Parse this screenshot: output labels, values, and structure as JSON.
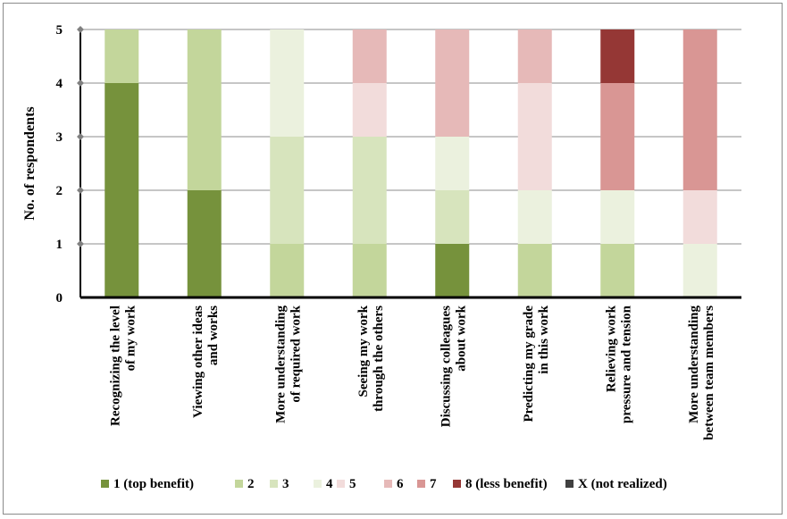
{
  "chart_data": {
    "type": "bar",
    "stacked": true,
    "ylabel": "No. of respondents",
    "ylim": [
      0,
      5
    ],
    "yticks": [
      "0",
      "1",
      "2",
      "3",
      "4",
      "5"
    ],
    "grid": true,
    "legend_position": "bottom",
    "categories": [
      [
        "Recognizing the level",
        "of my work"
      ],
      [
        "Viewing other ideas",
        "and works"
      ],
      [
        "More understanding",
        "of required work"
      ],
      [
        "Seeing my work",
        "through the others"
      ],
      [
        "Discussing colleagues",
        "about work"
      ],
      [
        "Predicting my grade",
        "in this work"
      ],
      [
        "Relieving work",
        "pressure and tension"
      ],
      [
        "More understanding",
        "between team members"
      ]
    ],
    "series": [
      {
        "name": "1 (top benefit)",
        "color": "#76923c",
        "values": [
          4,
          2,
          0,
          0,
          1,
          0,
          0,
          0
        ]
      },
      {
        "name": "2",
        "color": "#c3d69b",
        "values": [
          1,
          3,
          1,
          1,
          0,
          1,
          1,
          0
        ]
      },
      {
        "name": "3",
        "color": "#d7e4bd",
        "values": [
          0,
          0,
          2,
          2,
          1,
          0,
          0,
          0
        ]
      },
      {
        "name": "4",
        "color": "#ebf1de",
        "values": [
          0,
          0,
          2,
          0,
          1,
          1,
          1,
          1
        ]
      },
      {
        "name": "5",
        "color": "#f2dcdb",
        "values": [
          0,
          0,
          0,
          1,
          0,
          2,
          0,
          1
        ]
      },
      {
        "name": "6",
        "color": "#e6b9b8",
        "values": [
          0,
          0,
          0,
          1,
          2,
          1,
          0,
          0
        ]
      },
      {
        "name": "7",
        "color": "#d99694",
        "values": [
          0,
          0,
          0,
          0,
          0,
          0,
          2,
          3
        ]
      },
      {
        "name": "8 (less benefit)",
        "color": "#953735",
        "values": [
          0,
          0,
          0,
          0,
          0,
          0,
          1,
          0
        ]
      },
      {
        "name": "X (not realized)",
        "color": "#404040",
        "values": [
          0,
          0,
          0,
          0,
          0,
          0,
          0,
          0
        ]
      }
    ]
  }
}
